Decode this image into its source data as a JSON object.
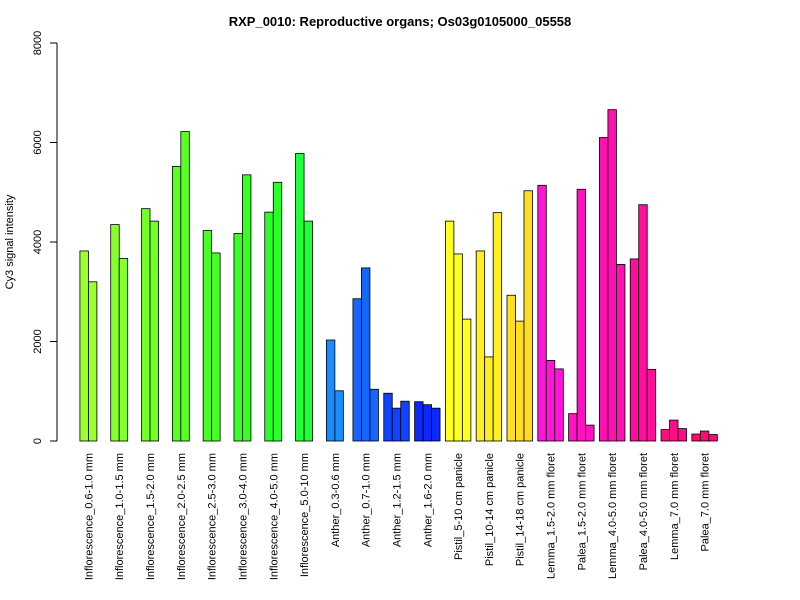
{
  "chart_data": {
    "type": "bar",
    "title": "RXP_0010: Reproductive organs; Os03g0105000_05558",
    "ylabel": "Cy3 signal intensity",
    "xlabel": "",
    "ylim": [
      0,
      8000
    ],
    "yticks": [
      0,
      2000,
      4000,
      6000,
      8000
    ],
    "grid": false,
    "legend": "none",
    "categories": [
      {
        "label": "Inflorescence_0.6-1.0 mm",
        "color": "#9aff2e",
        "values": [
          3820,
          3200
        ]
      },
      {
        "label": "Inflorescence_1.0-1.5 mm",
        "color": "#86ff2a",
        "values": [
          4350,
          3670
        ]
      },
      {
        "label": "Inflorescence_1.5-2.0 mm",
        "color": "#72ff26",
        "values": [
          4670,
          4420
        ]
      },
      {
        "label": "Inflorescence_2.0-2.5 mm",
        "color": "#5cff24",
        "values": [
          5520,
          6220
        ]
      },
      {
        "label": "Inflorescence_2.5-3.0 mm",
        "color": "#48ff22",
        "values": [
          4230,
          3780
        ]
      },
      {
        "label": "Inflorescence_3.0-4.0 mm",
        "color": "#38ff26",
        "values": [
          4170,
          5350
        ]
      },
      {
        "label": "Inflorescence_4.0-5.0 mm",
        "color": "#2aff2c",
        "values": [
          4600,
          5200
        ]
      },
      {
        "label": "Inflorescence_5.0-10 mm",
        "color": "#22ff3a",
        "values": [
          5780,
          4420
        ]
      },
      {
        "label": "Anther_0.3-0.6 mm",
        "color": "#1a8cff",
        "values": [
          2030,
          1010
        ]
      },
      {
        "label": "Anther_0.7-1.0 mm",
        "color": "#1466ff",
        "values": [
          2860,
          3480,
          1040
        ]
      },
      {
        "label": "Anther_1.2-1.5 mm",
        "color": "#0e44ff",
        "values": [
          960,
          660,
          800
        ]
      },
      {
        "label": "Anther_1.6-2.0 mm",
        "color": "#0a28ff",
        "values": [
          790,
          730,
          660
        ]
      },
      {
        "label": "Pistil_5-10 cm panicle",
        "color": "#ffff22",
        "values": [
          4420,
          3760,
          2450
        ]
      },
      {
        "label": "Pistil_10-14 cm panicle",
        "color": "#ffee22",
        "values": [
          3820,
          1690,
          4590
        ]
      },
      {
        "label": "Pistil_14-18 cm panicle",
        "color": "#ffdd22",
        "values": [
          2930,
          2410,
          5030
        ]
      },
      {
        "label": "Lemma_1.5-2.0 mm floret",
        "color": "#ff14d8",
        "values": [
          5140,
          1620,
          1450
        ]
      },
      {
        "label": "Palea_1.5-2.0 mm floret",
        "color": "#ff12c4",
        "values": [
          550,
          5060,
          320
        ]
      },
      {
        "label": "Lemma_4.0-5.0 mm floret",
        "color": "#ff10b0",
        "values": [
          6100,
          6660,
          3550
        ]
      },
      {
        "label": "Palea_4.0-5.0 mm floret",
        "color": "#ff0e9c",
        "values": [
          3660,
          4750,
          1440
        ]
      },
      {
        "label": "Lemma_7.0 mm floret",
        "color": "#ff0c88",
        "values": [
          230,
          420,
          250
        ]
      },
      {
        "label": "Palea_7.0 mm floret",
        "color": "#ff0a74",
        "values": [
          140,
          200,
          130
        ]
      }
    ]
  }
}
